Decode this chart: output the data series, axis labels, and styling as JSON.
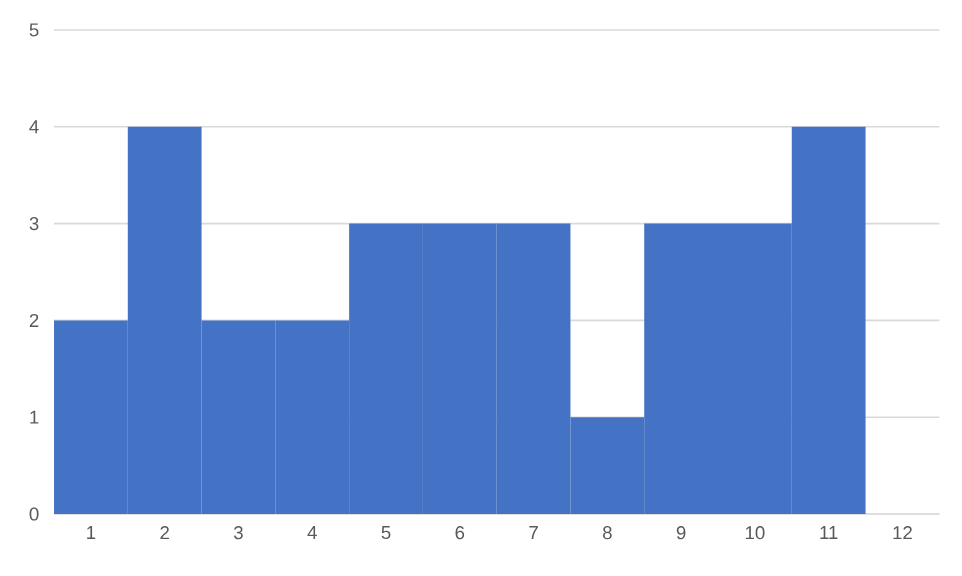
{
  "chart_data": {
    "type": "bar",
    "categories": [
      "1",
      "2",
      "3",
      "4",
      "5",
      "6",
      "7",
      "8",
      "9",
      "10",
      "11",
      "12"
    ],
    "values": [
      2,
      4,
      2,
      2,
      3,
      3,
      3,
      1,
      3,
      3,
      4,
      null
    ],
    "color": "#4472c4",
    "ylim": [
      0,
      5
    ],
    "yticks": [
      0,
      1,
      2,
      3,
      4,
      5
    ],
    "grid": "y"
  }
}
